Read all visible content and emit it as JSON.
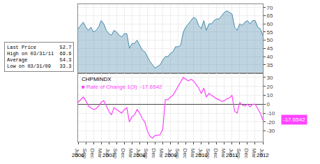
{
  "chart_data": [
    {
      "type": "area",
      "categories": [
        "Jun",
        null,
        null,
        "Sep",
        null,
        null,
        "Dec",
        null,
        null,
        "Mar",
        null,
        null,
        "Jun",
        null,
        null,
        "Sep",
        null,
        null,
        "Dec",
        null,
        null,
        "Mar",
        null,
        null,
        "Jun",
        null,
        null,
        "Sep",
        null,
        null,
        "Dec",
        null,
        null,
        "Mar",
        null,
        null,
        "Jun",
        null,
        null,
        "Sep",
        null,
        null,
        "Dec",
        null,
        null,
        "Mar",
        null,
        null,
        "Jun",
        null,
        null,
        "Sep",
        null,
        null,
        "Dec",
        null,
        null,
        "Mar",
        null,
        null,
        "Jun",
        null,
        null,
        "Sep",
        null,
        null,
        "Dec",
        null,
        null,
        "Mar",
        null,
        null,
        "Jun"
      ],
      "values": [
        57,
        59,
        61,
        58,
        56,
        58,
        55,
        56,
        58,
        62,
        60,
        56,
        54,
        53,
        56,
        55,
        53,
        52,
        54,
        54,
        45,
        48,
        48,
        50,
        47,
        44,
        43,
        40,
        37,
        35,
        33,
        34,
        35,
        38,
        40,
        40,
        42,
        43,
        46,
        46,
        47,
        55,
        58,
        60,
        62,
        64,
        63,
        59,
        57,
        62,
        56,
        60,
        60,
        62,
        63,
        63,
        65,
        67,
        68,
        67,
        66,
        58,
        56,
        60,
        59,
        61,
        62,
        60,
        62,
        62,
        58,
        57,
        53
      ],
      "color": "#4488aa",
      "ylim": [
        30,
        72
      ],
      "yticks": [
        35,
        40,
        45,
        50,
        55,
        60,
        65,
        70
      ],
      "grid": true,
      "tick_labels": "y",
      "annotations": [
        {
          "text": "Last Price        52.7"
        },
        {
          "text": "High on 03/31/11  69.6"
        },
        {
          "text": "Average           54.3"
        },
        {
          "text": "Low on 03/31/09   33.3"
        }
      ]
    },
    {
      "type": "line",
      "title": "CHPMINDX",
      "categories": [
        "Jun",
        null,
        null,
        "Sep",
        null,
        null,
        "Dec",
        null,
        null,
        "Mar",
        null,
        null,
        "Jun",
        null,
        null,
        "Sep",
        null,
        null,
        "Dec",
        null,
        null,
        "Mar",
        null,
        null,
        "Jun",
        null,
        null,
        "Sep",
        null,
        null,
        "Dec",
        null,
        null,
        "Mar",
        null,
        null,
        "Jun",
        null,
        null,
        "Sep",
        null,
        null,
        "Dec",
        null,
        null,
        "Mar",
        null,
        null,
        "Jun",
        null,
        null,
        "Sep",
        null,
        null,
        "Dec",
        null,
        null,
        "Mar",
        null,
        null,
        "Jun",
        null,
        null,
        "Sep",
        null,
        null,
        "Dec",
        null,
        null,
        "Mar",
        null,
        null,
        "Jun"
      ],
      "series": [
        {
          "name": "■ Rate of Change 1(3)  -17.6542",
          "color": "#ff44ff",
          "values": [
            2,
            5,
            8,
            4,
            -2,
            -4,
            -6,
            -5,
            -2,
            2,
            4,
            -2,
            -8,
            -12,
            -4,
            -6,
            -8,
            -10,
            -6,
            -4,
            -20,
            -14,
            -12,
            -6,
            -10,
            -16,
            -20,
            -30,
            -36,
            -38,
            -35,
            -35,
            -34,
            -28,
            5,
            5,
            8,
            10,
            15,
            20,
            25,
            30,
            28,
            26,
            28,
            26,
            22,
            18,
            12,
            18,
            8,
            12,
            10,
            8,
            6,
            5,
            3,
            4,
            6,
            7,
            10,
            -8,
            -10,
            2,
            -1,
            -2,
            0,
            -3,
            0,
            0,
            -5,
            -10,
            -18
          ]
        }
      ],
      "ylim": [
        -42,
        35
      ],
      "yticks": [
        -30,
        -20,
        -10,
        0,
        10,
        20,
        30
      ],
      "grid": true,
      "annotations": [
        {
          "text": "-17.6542",
          "y": -17.6542
        },
        {
          "text": "2006",
          "x": 0
        },
        {
          "text": "2007",
          "x": 12
        },
        {
          "text": "2008",
          "x": 24
        },
        {
          "text": "2009",
          "x": 36
        },
        {
          "text": "2010",
          "x": 48
        },
        {
          "text": "2011",
          "x": 60
        },
        {
          "text": "2012",
          "x": 72
        }
      ]
    }
  ]
}
